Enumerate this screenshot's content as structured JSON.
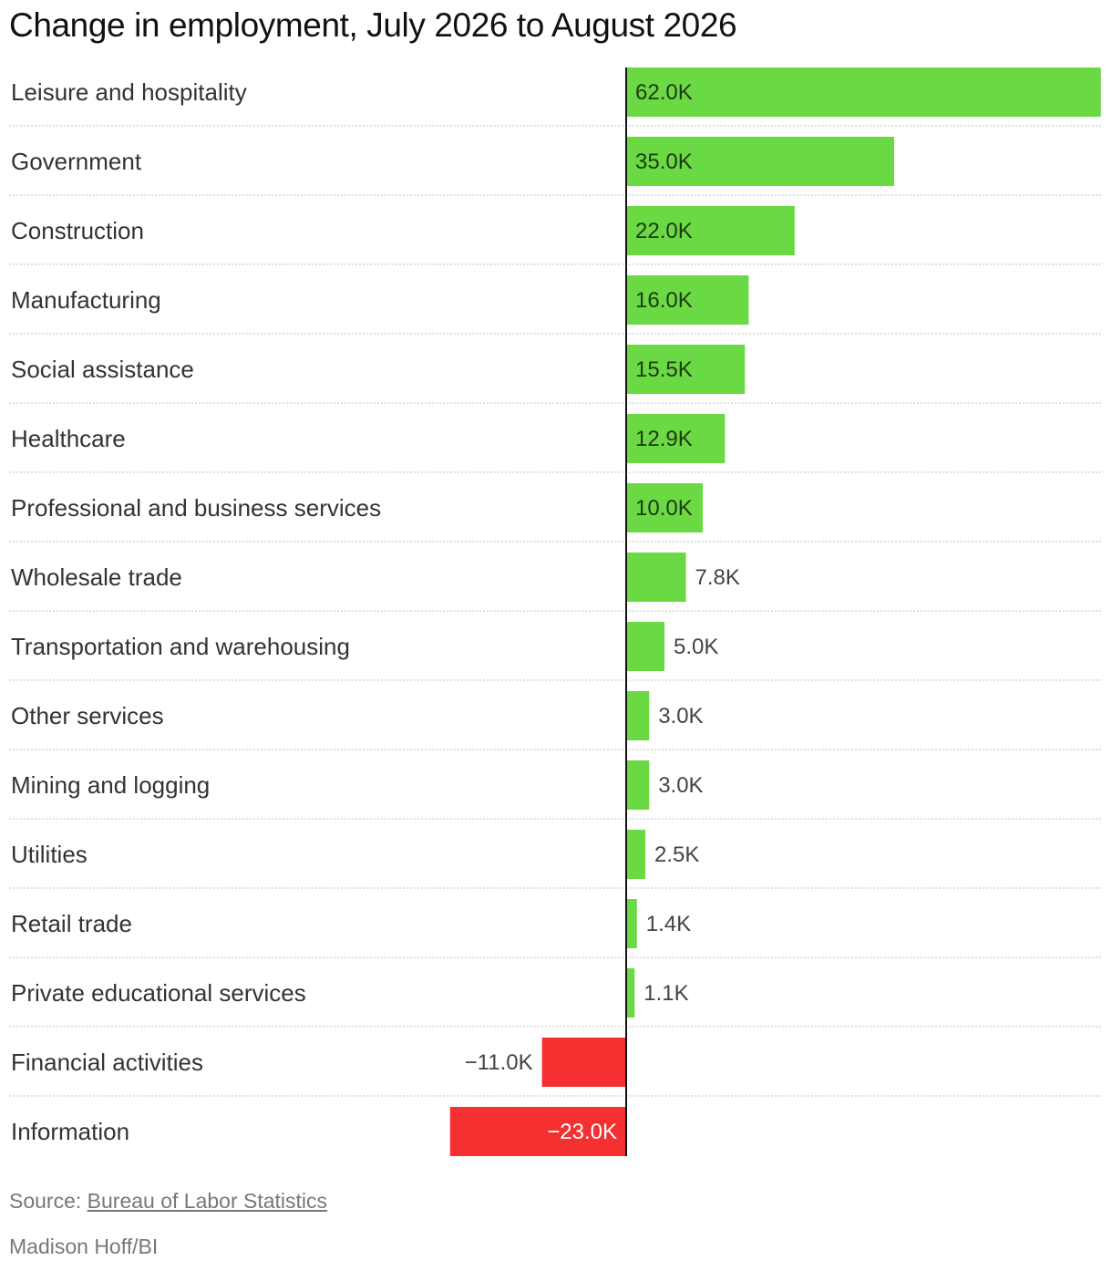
{
  "chart_data": {
    "type": "bar",
    "orientation": "horizontal",
    "title": "Change in employment, July 2026 to August 2026",
    "categories": [
      "Leisure and hospitality",
      "Government",
      "Construction",
      "Manufacturing",
      "Social assistance",
      "Healthcare",
      "Professional and business services",
      "Wholesale trade",
      "Transportation and warehousing",
      "Other services",
      "Mining and logging",
      "Utilities",
      "Retail trade",
      "Private educational services",
      "Financial activities",
      "Information"
    ],
    "values": [
      62.0,
      35.0,
      22.0,
      16.0,
      15.5,
      12.9,
      10.0,
      7.8,
      5.0,
      3.0,
      3.0,
      2.5,
      1.4,
      1.1,
      -11.0,
      -23.0
    ],
    "value_labels": [
      "62.0K",
      "35.0K",
      "22.0K",
      "16.0K",
      "15.5K",
      "12.9K",
      "10.0K",
      "7.8K",
      "5.0K",
      "3.0K",
      "3.0K",
      "2.5K",
      "1.4K",
      "1.1K",
      "−11.0K",
      "−23.0K"
    ],
    "unit": "thousands of jobs",
    "xlim": [
      -23,
      62
    ],
    "colors": {
      "positive": "#6ad943",
      "negative": "#f43030",
      "axis": "#111111",
      "separator": "#cccccc"
    }
  },
  "source_prefix": "Source: ",
  "source_link": "Bureau of Labor Statistics",
  "credit": "Madison Hoff/BI"
}
